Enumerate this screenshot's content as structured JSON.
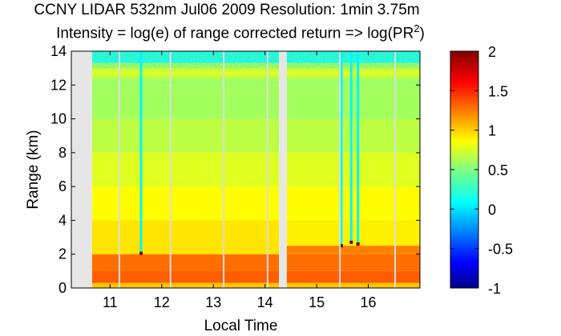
{
  "chart_data": {
    "type": "heatmap",
    "title": "CCNY LIDAR 532nm Jul06 2009 Resolution: 1min 3.75m",
    "subtitle": "Intensity = log(e) of range corrected return => log(PR²)",
    "xlabel": "Local Time",
    "ylabel": "Range (km)",
    "xlim": [
      10.25,
      17.0
    ],
    "ylim": [
      0,
      14
    ],
    "x_ticks": [
      11,
      12,
      13,
      14,
      15,
      16
    ],
    "x_tick_labels": [
      "11",
      "12",
      "13",
      "14",
      "15",
      "16"
    ],
    "y_ticks": [
      0,
      2,
      4,
      6,
      8,
      10,
      12,
      14
    ],
    "y_tick_labels": [
      "0",
      "2",
      "4",
      "6",
      "8",
      "10",
      "12",
      "14"
    ],
    "colorbar": {
      "colormap": "jet",
      "range": [
        -1,
        2
      ],
      "ticks": [
        -1,
        -0.5,
        0,
        0.5,
        1,
        1.5,
        2
      ],
      "tick_labels": [
        "-1",
        "-0.5",
        "0",
        "0.5",
        "1",
        "1.5",
        "2"
      ]
    },
    "features": {
      "boundary_layer_top_km": {
        "before_gap": 1.9,
        "after_gap": 2.5
      },
      "boundary_layer_value": 1.3,
      "free_troposphere_value": 0.9,
      "upper_troposphere_value": 0.55,
      "cirrus_layer_km": [
        12.2,
        13.2
      ],
      "cirrus_value": 0.85,
      "data_gaps_hours": [
        [
          10.25,
          10.65
        ],
        [
          14.27,
          14.42
        ]
      ],
      "dropout_lines_hours": [
        11.18,
        12.17,
        13.2,
        14.05,
        15.45,
        16.52
      ],
      "precipitation_columns": [
        {
          "hour": 11.6,
          "top_km": 14.0,
          "base_km": 2.05
        },
        {
          "hour": 15.67,
          "top_km": 14.0,
          "base_km": 2.7
        },
        {
          "hour": 15.8,
          "top_km": 14.0,
          "base_km": 2.6
        },
        {
          "hour": 15.48,
          "top_km": 14.0,
          "base_km": 2.5
        }
      ],
      "early_column_hours": [
        10.25,
        10.55
      ]
    }
  }
}
